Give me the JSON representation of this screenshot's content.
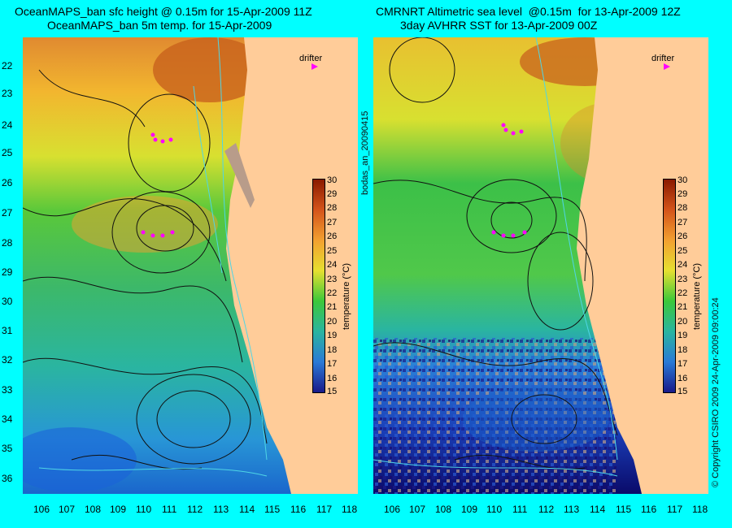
{
  "left_panel": {
    "title_line1": "OceanMAPS_ban sfc height @ 0.15m for 15-Apr-2009 11Z",
    "title_line2": "OceanMAPS_ban 5m temp. for 15-Apr-2009",
    "drifter_label": "drifter",
    "colorbar_label": "temperature (°C)"
  },
  "right_panel": {
    "title_line1": "CMRNRT Altimetric sea level  @0.15m  for 13-Apr-2009 12Z",
    "title_line2": "3day AVHRR SST for 13-Apr-2009 00Z",
    "drifter_label": "drifter",
    "colorbar_label": "temperature (°C)"
  },
  "side_label": "bodas_an_20090415",
  "copyright": "© Copyright CSIRO 2009    24-Apr-2009 09:00:24",
  "y_axis_labels": [
    "22",
    "23",
    "24",
    "25",
    "26",
    "27",
    "28",
    "29",
    "30",
    "31",
    "32",
    "33",
    "34",
    "35",
    "36"
  ],
  "x_axis_labels": [
    "106",
    "107",
    "108",
    "109",
    "110",
    "111",
    "112",
    "113",
    "114",
    "115",
    "116",
    "117",
    "118"
  ],
  "colorbar_ticks": [
    "30",
    "29",
    "28",
    "27",
    "26",
    "25",
    "24",
    "23",
    "22",
    "21",
    "20",
    "19",
    "18",
    "17",
    "16",
    "15"
  ],
  "colors": {
    "background": "#00ffff",
    "land": "#ffcc99",
    "drifter": "#ff00ff"
  }
}
